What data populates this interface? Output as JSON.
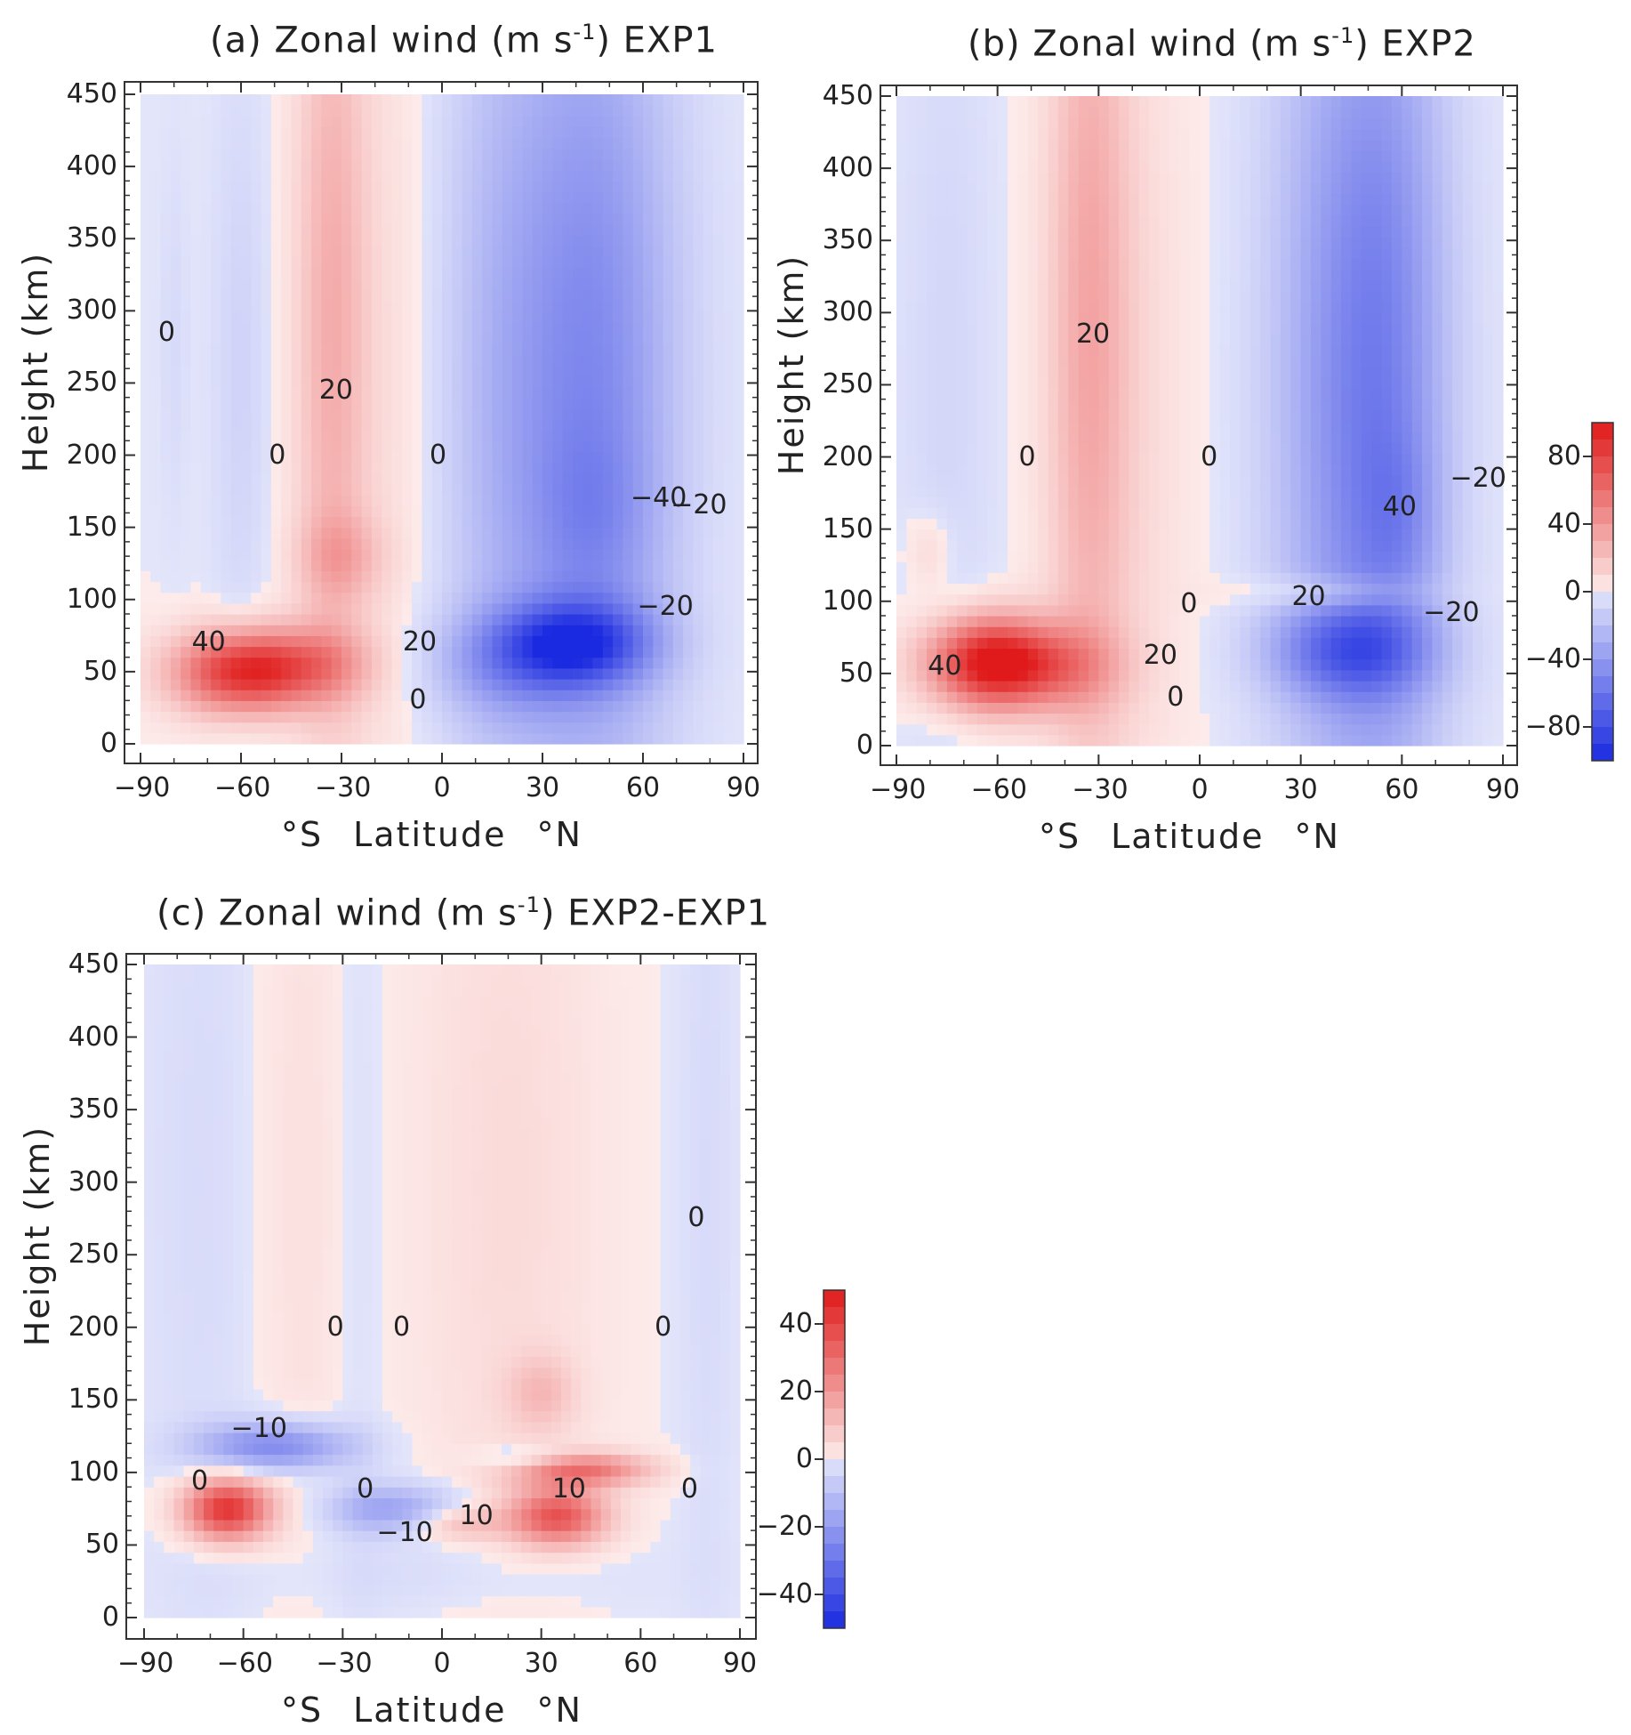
{
  "chart_data": [
    {
      "type": "heatmap",
      "id": "a",
      "title_prefix": "(a) Zonal wind (m s",
      "title_exp": "-1",
      "title_suffix": ") EXP1",
      "xlabel_left": "°S",
      "xlabel_mid": "Latitude",
      "xlabel_right": "°N",
      "ylabel": "Height (km)",
      "x_ticks": [
        -90,
        -60,
        -30,
        0,
        30,
        60,
        90
      ],
      "y_ticks": [
        0,
        50,
        100,
        150,
        200,
        250,
        300,
        350,
        400,
        450
      ],
      "xlim": [
        -90,
        90
      ],
      "ylim": [
        0,
        450
      ],
      "contour_labels": [
        {
          "text": "0",
          "x": -81,
          "y": 285
        },
        {
          "text": "20",
          "x": -33,
          "y": 245
        },
        {
          "text": "0",
          "x": -48,
          "y": 200
        },
        {
          "text": "0",
          "x": 0,
          "y": 200
        },
        {
          "text": "-40",
          "x": 60,
          "y": 170
        },
        {
          "text": "-20",
          "x": 72,
          "y": 165
        },
        {
          "text": "-20",
          "x": 62,
          "y": 95
        },
        {
          "text": "40",
          "x": -71,
          "y": 70
        },
        {
          "text": "20",
          "x": -8,
          "y": 70
        },
        {
          "text": "0",
          "x": -6,
          "y": 30
        }
      ]
    },
    {
      "type": "heatmap",
      "id": "b",
      "title_prefix": "(b) Zonal wind (m s",
      "title_exp": "-1",
      "title_suffix": ") EXP2",
      "xlabel_left": "°S",
      "xlabel_mid": "Latitude",
      "xlabel_right": "°N",
      "ylabel": "Height (km)",
      "x_ticks": [
        -90,
        -60,
        -30,
        0,
        30,
        60,
        90
      ],
      "y_ticks": [
        0,
        50,
        100,
        150,
        200,
        250,
        300,
        350,
        400,
        450
      ],
      "xlim": [
        -90,
        90
      ],
      "ylim": [
        0,
        450
      ],
      "contour_labels": [
        {
          "text": "20",
          "x": -33,
          "y": 285
        },
        {
          "text": "0",
          "x": -50,
          "y": 200
        },
        {
          "text": "0",
          "x": 4,
          "y": 200
        },
        {
          "text": "-20",
          "x": 78,
          "y": 185
        },
        {
          "text": "40",
          "x": 58,
          "y": 165
        },
        {
          "text": "0",
          "x": -2,
          "y": 98
        },
        {
          "text": "20",
          "x": 31,
          "y": 103
        },
        {
          "text": "-20",
          "x": 70,
          "y": 92
        },
        {
          "text": "40",
          "x": -77,
          "y": 55
        },
        {
          "text": "20",
          "x": -13,
          "y": 62
        },
        {
          "text": "0",
          "x": -6,
          "y": 33
        }
      ]
    },
    {
      "type": "heatmap",
      "id": "c",
      "title_prefix": "(c) Zonal wind (m s",
      "title_exp": "-1",
      "title_suffix": ") EXP2-EXP1",
      "xlabel_left": "°S",
      "xlabel_mid": "Latitude",
      "xlabel_right": "°N",
      "ylabel": "Height (km)",
      "x_ticks": [
        -90,
        -60,
        -30,
        0,
        30,
        60,
        90
      ],
      "y_ticks": [
        0,
        50,
        100,
        150,
        200,
        250,
        300,
        350,
        400,
        450
      ],
      "xlim": [
        -90,
        90
      ],
      "ylim": [
        0,
        450
      ],
      "contour_labels": [
        {
          "text": "0",
          "x": 78,
          "y": 275
        },
        {
          "text": "0",
          "x": -31,
          "y": 200
        },
        {
          "text": "0",
          "x": -11,
          "y": 200
        },
        {
          "text": "0",
          "x": 68,
          "y": 200
        },
        {
          "text": "-10",
          "x": -60,
          "y": 130
        },
        {
          "text": "0",
          "x": -72,
          "y": 94
        },
        {
          "text": "0",
          "x": -22,
          "y": 88
        },
        {
          "text": "10",
          "x": 37,
          "y": 88
        },
        {
          "text": "0",
          "x": 76,
          "y": 88
        },
        {
          "text": "10",
          "x": 9,
          "y": 70
        },
        {
          "text": "-10",
          "x": -16,
          "y": 58
        }
      ]
    }
  ],
  "colorbars": [
    {
      "id": "ab",
      "ticks": [
        "80",
        "40",
        "0",
        "-40",
        "-80"
      ],
      "range": [
        -100,
        100
      ]
    },
    {
      "id": "c",
      "ticks": [
        "40",
        "20",
        "0",
        "-20",
        "-40"
      ],
      "range": [
        -50,
        50
      ]
    }
  ],
  "colors": {
    "positive": "#e01a1a",
    "negative": "#1a2ae0",
    "zero_pos": "#fdeceb",
    "zero_neg": "#e4e6fb"
  }
}
